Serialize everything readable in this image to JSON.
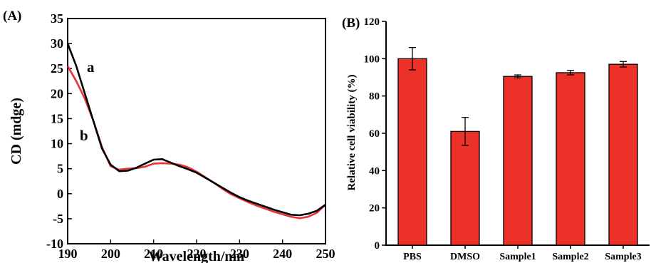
{
  "chart_data": [
    {
      "panel": "(A)",
      "type": "line",
      "xlabel": "Wavelength/nm",
      "ylabel": "CD (mdge)",
      "xlim": [
        190,
        250
      ],
      "ylim": [
        -10,
        35
      ],
      "xticks": [
        "190",
        "200",
        "210",
        "220",
        "230",
        "240",
        "250"
      ],
      "yticks": [
        "-10",
        "-5",
        "0",
        "5",
        "10",
        "15",
        "20",
        "25",
        "30",
        "35"
      ],
      "grid": false,
      "colors": {
        "a": "#000000",
        "b": "#e8333a"
      },
      "series": [
        {
          "name": "a",
          "x": [
            190,
            192,
            194,
            196,
            198,
            200,
            202,
            204,
            206,
            208,
            210,
            212,
            214,
            216,
            218,
            220,
            222,
            224,
            226,
            228,
            230,
            232,
            234,
            236,
            238,
            240,
            242,
            244,
            246,
            248,
            250
          ],
          "y": [
            30,
            25.5,
            20,
            14.5,
            9,
            5.8,
            4.5,
            4.6,
            5.2,
            6,
            6.8,
            6.9,
            6.2,
            5.5,
            4.9,
            4.2,
            3.2,
            2.2,
            1.2,
            0.2,
            -0.7,
            -1.4,
            -2,
            -2.6,
            -3.2,
            -3.7,
            -4.2,
            -4.3,
            -4.0,
            -3.4,
            -2.2
          ]
        },
        {
          "name": "b",
          "x": [
            190,
            192,
            194,
            196,
            198,
            200,
            202,
            204,
            206,
            208,
            210,
            212,
            214,
            216,
            218,
            220,
            222,
            224,
            226,
            228,
            230,
            232,
            234,
            236,
            238,
            240,
            242,
            244,
            246,
            248,
            250
          ],
          "y": [
            25.5,
            22.5,
            19,
            14.5,
            9.3,
            5.5,
            4.8,
            5,
            5.1,
            5.4,
            6,
            6.1,
            6,
            5.8,
            5.3,
            4.4,
            3.3,
            2.2,
            1,
            -0.1,
            -0.9,
            -1.7,
            -2.4,
            -3,
            -3.6,
            -4.1,
            -4.6,
            -4.9,
            -4.6,
            -3.8,
            -2.2
          ]
        }
      ]
    },
    {
      "panel": "(B)",
      "type": "bar",
      "ylabel": "Relative cell viability (%)",
      "ylim": [
        0,
        120
      ],
      "yticks": [
        "0",
        "20",
        "40",
        "60",
        "80",
        "100",
        "120"
      ],
      "categories": [
        "PBS",
        "DMSO",
        "Sample1",
        "Sample2",
        "Sample3"
      ],
      "values": [
        100,
        61,
        90.5,
        92.5,
        97
      ],
      "errors": [
        6,
        7.5,
        0.8,
        1.2,
        1.5
      ],
      "bar_color": "#ec3129",
      "grid": false
    }
  ]
}
